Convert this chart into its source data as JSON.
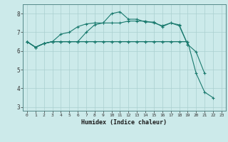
{
  "xlabel": "Humidex (Indice chaleur)",
  "bg_color": "#cceaea",
  "line_color": "#1a7a6e",
  "grid_color": "#aacfcf",
  "xlim": [
    -0.5,
    23.5
  ],
  "ylim": [
    2.8,
    8.5
  ],
  "yticks": [
    3,
    4,
    5,
    6,
    7,
    8
  ],
  "xticks": [
    0,
    1,
    2,
    3,
    4,
    5,
    6,
    7,
    8,
    9,
    10,
    11,
    12,
    13,
    14,
    15,
    16,
    17,
    18,
    19,
    20,
    21,
    22,
    23
  ],
  "series": [
    {
      "x": [
        0,
        1,
        2,
        3,
        4,
        5,
        6,
        7,
        8,
        9,
        10,
        11,
        12,
        13,
        14,
        15,
        16,
        17,
        18,
        19,
        20,
        21
      ],
      "y": [
        6.5,
        6.2,
        6.4,
        6.5,
        6.9,
        7.0,
        7.3,
        7.45,
        7.5,
        7.5,
        8.0,
        8.1,
        7.7,
        7.7,
        7.55,
        7.55,
        7.3,
        7.5,
        7.4,
        6.35,
        5.95,
        4.8
      ]
    },
    {
      "x": [
        0,
        1,
        2,
        3,
        4,
        5,
        6,
        7,
        8,
        9,
        10,
        11,
        12,
        13,
        14,
        15,
        16,
        17,
        18,
        19
      ],
      "y": [
        6.5,
        6.2,
        6.4,
        6.5,
        6.5,
        6.5,
        6.5,
        7.0,
        7.4,
        7.5,
        7.5,
        7.5,
        7.6,
        7.6,
        7.6,
        7.5,
        7.35,
        7.5,
        7.35,
        6.35
      ]
    },
    {
      "x": [
        0,
        1,
        2,
        3,
        4,
        5,
        6,
        7,
        8,
        9,
        10,
        11,
        12,
        13,
        14,
        15,
        16,
        17,
        18,
        19
      ],
      "y": [
        6.5,
        6.2,
        6.4,
        6.5,
        6.5,
        6.5,
        6.5,
        6.5,
        6.5,
        6.5,
        6.5,
        6.5,
        6.5,
        6.5,
        6.5,
        6.5,
        6.5,
        6.5,
        6.5,
        6.5
      ]
    },
    {
      "x": [
        0,
        1,
        2,
        3,
        4,
        5,
        6,
        7,
        8,
        9,
        10,
        11,
        12,
        13,
        14,
        15,
        16,
        17,
        18,
        19,
        20,
        21,
        22
      ],
      "y": [
        6.5,
        6.2,
        6.4,
        6.5,
        6.5,
        6.5,
        6.5,
        6.5,
        6.5,
        6.5,
        6.5,
        6.5,
        6.5,
        6.5,
        6.5,
        6.5,
        6.5,
        6.5,
        6.5,
        6.5,
        4.8,
        3.8,
        3.5
      ]
    }
  ]
}
